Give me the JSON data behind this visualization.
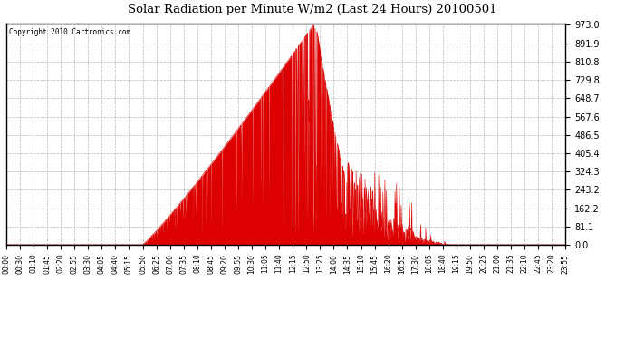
{
  "title": "Solar Radiation per Minute W/m2 (Last 24 Hours) 20100501",
  "copyright_text": "Copyright 2010 Cartronics.com",
  "y_ticks": [
    0.0,
    81.1,
    162.2,
    243.2,
    324.3,
    405.4,
    486.5,
    567.6,
    648.7,
    729.8,
    810.8,
    891.9,
    973.0
  ],
  "y_min": 0.0,
  "y_max": 973.0,
  "fill_color": "#dd0000",
  "line_color": "#dd0000",
  "dashed_line_color": "#cc0000",
  "grid_color": "#b0b0b0",
  "background_color": "#ffffff",
  "border_color": "#000000",
  "x_tick_labels": [
    "00:00",
    "00:30",
    "01:10",
    "01:45",
    "02:20",
    "02:55",
    "03:30",
    "04:05",
    "04:40",
    "05:15",
    "05:50",
    "06:25",
    "07:00",
    "07:35",
    "08:10",
    "08:45",
    "09:20",
    "09:55",
    "10:30",
    "11:05",
    "11:40",
    "12:15",
    "12:50",
    "13:25",
    "14:00",
    "14:35",
    "15:10",
    "15:45",
    "16:20",
    "16:55",
    "17:30",
    "18:05",
    "18:40",
    "19:15",
    "19:50",
    "20:25",
    "21:00",
    "21:35",
    "22:10",
    "22:45",
    "23:20",
    "23:55"
  ],
  "sunrise_minute": 350,
  "sunset_minute": 1160,
  "peak_minute": 790,
  "peak_value": 973.0
}
